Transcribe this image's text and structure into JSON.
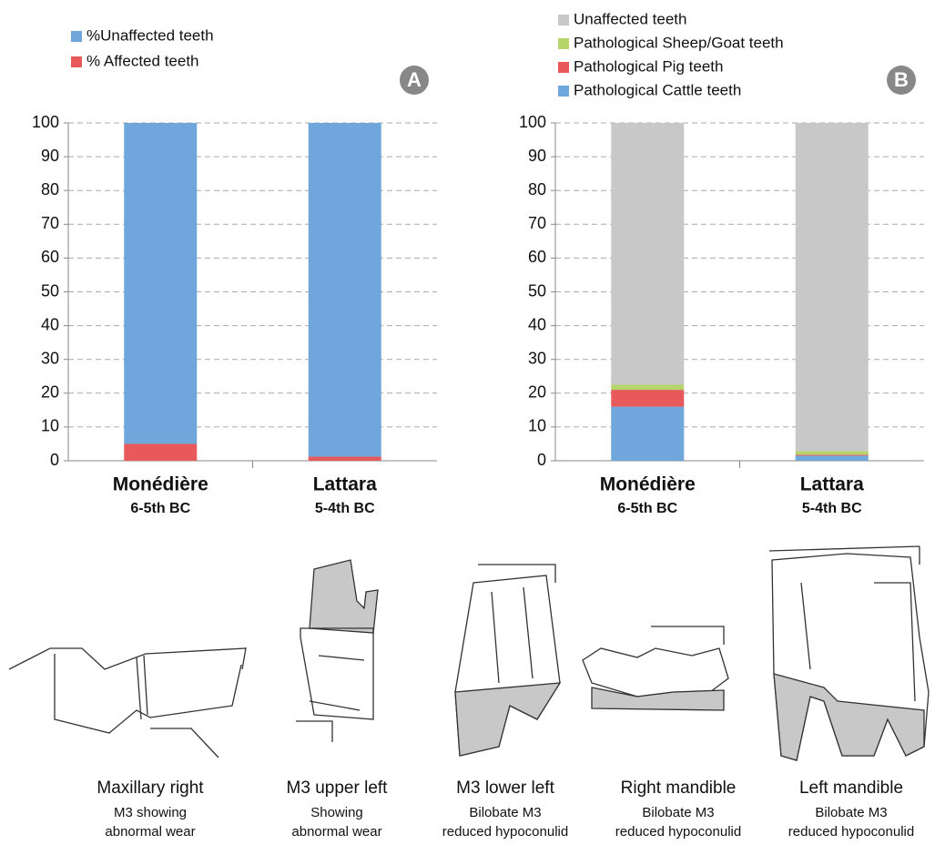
{
  "chart_data": [
    {
      "type": "stacked_bar",
      "panel": "A",
      "categories": [
        "Monédière",
        "Lattara"
      ],
      "category_sublabels": [
        "6-5th BC",
        "5-4th BC"
      ],
      "series": [
        {
          "name": "% Affected teeth",
          "color": "#e8595b",
          "values": [
            5,
            1.2
          ]
        },
        {
          "name": "%Unaffected teeth",
          "color": "#6fa6dc",
          "values": [
            95,
            98.8
          ]
        }
      ],
      "ylim": [
        0,
        100
      ],
      "yticks": [
        0,
        10,
        20,
        30,
        40,
        50,
        60,
        70,
        80,
        90,
        100
      ],
      "grid": true
    },
    {
      "type": "stacked_bar",
      "panel": "B",
      "categories": [
        "Monédière",
        "Lattara"
      ],
      "category_sublabels": [
        "6-5th BC",
        "5-4th BC"
      ],
      "series": [
        {
          "name": "Pathological Cattle teeth",
          "color": "#6fa6dc",
          "values": [
            16,
            1.5
          ]
        },
        {
          "name": "Pathological Pig teeth",
          "color": "#e8595b",
          "values": [
            5,
            0.3
          ]
        },
        {
          "name": "Pathological Sheep/Goat teeth",
          "color": "#b5d46a",
          "values": [
            1.5,
            1
          ]
        },
        {
          "name": "Unaffected teeth",
          "color": "#c8c8c8",
          "values": [
            77.5,
            97.2
          ]
        }
      ],
      "ylim": [
        0,
        100
      ],
      "yticks": [
        0,
        10,
        20,
        30,
        40,
        50,
        60,
        70,
        80,
        90,
        100
      ],
      "grid": true
    }
  ],
  "drawings": [
    {
      "title": "Maxillary right",
      "lines": [
        "M3 showing",
        "abnormal wear"
      ]
    },
    {
      "title": "M3 upper left",
      "lines": [
        "Showing",
        "abnormal wear"
      ]
    },
    {
      "title": "M3 lower left",
      "lines": [
        "Bilobate M3",
        "reduced hypoconulid"
      ]
    },
    {
      "title": "Right mandible",
      "lines": [
        "Bilobate M3",
        "reduced hypoconulid"
      ]
    },
    {
      "title": "Left mandible",
      "lines": [
        "Bilobate M3",
        "reduced hypoconulid"
      ]
    }
  ]
}
